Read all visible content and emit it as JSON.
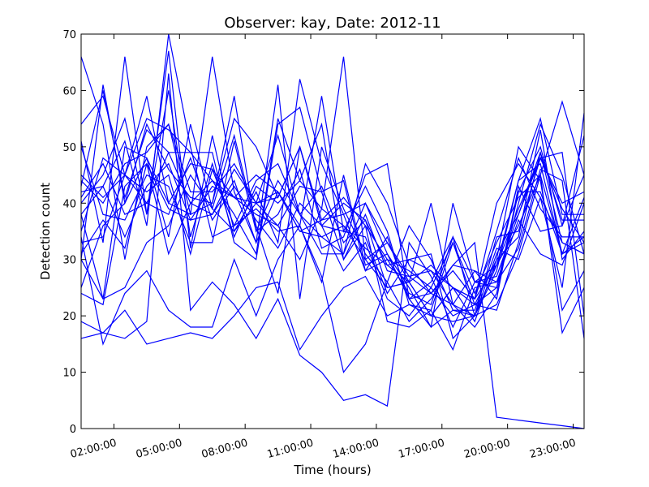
{
  "chart_data": {
    "type": "line",
    "title": "Observer: kay, Date: 2012-11",
    "xlabel": "Time (hours)",
    "ylabel": "Detection count",
    "x_range_hours": [
      0.5,
      23.5
    ],
    "ylim": [
      0,
      70
    ],
    "grid": false,
    "legend": "none",
    "line_color": "#0000ff",
    "x_ticks": [
      {
        "value": 2,
        "label": "02:00:00"
      },
      {
        "value": 5,
        "label": "05:00:00"
      },
      {
        "value": 8,
        "label": "08:00:00"
      },
      {
        "value": 11,
        "label": "11:00:00"
      },
      {
        "value": 14,
        "label": "14:00:00"
      },
      {
        "value": 17,
        "label": "17:00:00"
      },
      {
        "value": 20,
        "label": "20:00:00"
      },
      {
        "value": 23,
        "label": "23:00:00"
      }
    ],
    "y_ticks": [
      0,
      10,
      20,
      30,
      40,
      50,
      60,
      70
    ],
    "x": [
      0.5,
      1.5,
      2.5,
      3.5,
      4.5,
      5.5,
      6.5,
      7.5,
      8.5,
      9.5,
      10.5,
      11.5,
      12.5,
      13.5,
      14.5,
      15.5,
      16.5,
      17.5,
      18.5,
      19.5,
      20.5,
      21.5,
      22.5,
      23.5
    ],
    "series": [
      {
        "values": [
          66,
          54,
          30,
          50,
          54,
          38,
          40,
          55,
          50,
          41,
          50,
          36,
          40,
          37,
          29,
          26,
          20,
          25,
          22,
          21,
          33,
          49,
          33,
          31
        ]
      },
      {
        "values": [
          54,
          59,
          45,
          55,
          53,
          49,
          44,
          41,
          40,
          52,
          38,
          31,
          31,
          47,
          40,
          29,
          24,
          28,
          23,
          40,
          47,
          41,
          25,
          56
        ]
      },
      {
        "values": [
          51,
          33,
          66,
          38,
          60,
          34,
          47,
          34,
          43,
          40,
          44,
          39,
          36,
          30,
          33,
          27,
          28,
          22,
          18,
          24,
          42,
          50,
          36,
          45
        ]
      },
      {
        "values": [
          40,
          45,
          55,
          38,
          67,
          32,
          52,
          35,
          42,
          33,
          62,
          47,
          38,
          40,
          31,
          23,
          26,
          34,
          26,
          29,
          36,
          45,
          31,
          41
        ]
      },
      {
        "values": [
          30,
          61,
          40,
          48,
          40,
          38,
          66,
          42,
          33,
          61,
          23,
          50,
          39,
          31,
          26,
          36,
          30,
          21,
          20,
          29,
          39,
          48,
          39,
          33
        ]
      },
      {
        "values": [
          38,
          43,
          51,
          36,
          70,
          50,
          34,
          36,
          39,
          35,
          36,
          59,
          35,
          43,
          35,
          22,
          21,
          33,
          24,
          33,
          41,
          45,
          58,
          45
        ]
      },
      {
        "values": [
          25,
          36,
          40,
          54,
          46,
          41,
          40,
          59,
          35,
          38,
          46,
          32,
          34,
          45,
          47,
          23,
          24,
          29,
          28,
          23,
          43,
          35,
          36,
          52
        ]
      },
      {
        "values": [
          44,
          40,
          47,
          49,
          54,
          42,
          42,
          47,
          40,
          41,
          50,
          36,
          35,
          34,
          24,
          30,
          28,
          25,
          23,
          29,
          44,
          55,
          38,
          38
        ]
      },
      {
        "values": [
          35,
          48,
          45,
          59,
          40,
          47,
          46,
          41,
          38,
          36,
          30,
          39,
          66,
          30,
          25,
          26,
          40,
          22,
          20,
          31,
          38,
          49,
          37,
          37
        ]
      },
      {
        "values": [
          50,
          38,
          37,
          45,
          43,
          33,
          33,
          51,
          35,
          44,
          38,
          34,
          36,
          32,
          29,
          30,
          31,
          16,
          20,
          34,
          35,
          48,
          40,
          42
        ]
      },
      {
        "values": [
          42,
          43,
          34,
          43,
          47,
          37,
          43,
          41,
          45,
          42,
          35,
          34,
          31,
          40,
          33,
          26,
          20,
          25,
          19,
          30,
          34,
          53,
          30,
          35
        ]
      },
      {
        "values": [
          24,
          22,
          43,
          47,
          39,
          37,
          38,
          46,
          40,
          36,
          43,
          42,
          30,
          38,
          28,
          27,
          24,
          22,
          28,
          26,
          32,
          46,
          44,
          16
        ]
      },
      {
        "values": [
          33,
          34,
          45,
          40,
          38,
          48,
          37,
          43,
          37,
          32,
          40,
          36,
          28,
          33,
          23,
          20,
          25,
          20,
          22,
          25,
          40,
          54,
          45,
          31
        ]
      },
      {
        "values": [
          19,
          17,
          21,
          15,
          16,
          17,
          16,
          20,
          25,
          26,
          14,
          20,
          25,
          27,
          20,
          22,
          20,
          19,
          20,
          22,
          31,
          45,
          17,
          25
        ]
      },
      {
        "values": [
          16,
          17,
          16,
          19,
          63,
          21,
          26,
          22,
          16,
          23,
          13,
          10,
          5,
          6,
          4,
          33,
          27,
          18,
          26,
          27,
          38,
          48,
          49,
          20
        ]
      },
      {
        "values": [
          34,
          15,
          24,
          28,
          21,
          18,
          18,
          30,
          20,
          30,
          36,
          27,
          10,
          15,
          26,
          19,
          23,
          29,
          33,
          2,
          1.5,
          1,
          0.5,
          0
        ]
      },
      {
        "values": [
          30,
          23,
          25,
          33,
          36,
          45,
          39,
          52,
          36,
          24,
          50,
          37,
          41,
          36,
          19,
          18,
          21,
          14,
          25,
          26,
          37,
          31,
          29,
          40
        ]
      },
      {
        "values": [
          43,
          60,
          41,
          53,
          49,
          49,
          49,
          33,
          30,
          54,
          57,
          42,
          44,
          28,
          34,
          23,
          18,
          40,
          26,
          25,
          42,
          42,
          31,
          33
        ]
      },
      {
        "values": [
          38,
          23,
          50,
          48,
          34,
          54,
          39,
          35,
          40,
          42,
          36,
          26,
          45,
          29,
          31,
          25,
          18,
          21,
          21,
          32,
          30,
          41,
          33,
          31
        ]
      },
      {
        "values": [
          31,
          37,
          32,
          47,
          31,
          40,
          44,
          38,
          31,
          55,
          44,
          54,
          30,
          36,
          30,
          28,
          25,
          33,
          22,
          30,
          50,
          44,
          21,
          28
        ]
      },
      {
        "values": [
          45,
          41,
          45,
          42,
          45,
          31,
          46,
          36,
          44,
          47,
          38,
          43,
          33,
          37,
          25,
          26,
          29,
          25,
          23,
          35,
          48,
          39,
          34,
          34
        ]
      },
      {
        "values": [
          41,
          47,
          38,
          40,
          49,
          40,
          38,
          44,
          33,
          42,
          35,
          37,
          38,
          28,
          30,
          24,
          22,
          34,
          20,
          28,
          44,
          47,
          31,
          34
        ]
      }
    ]
  }
}
